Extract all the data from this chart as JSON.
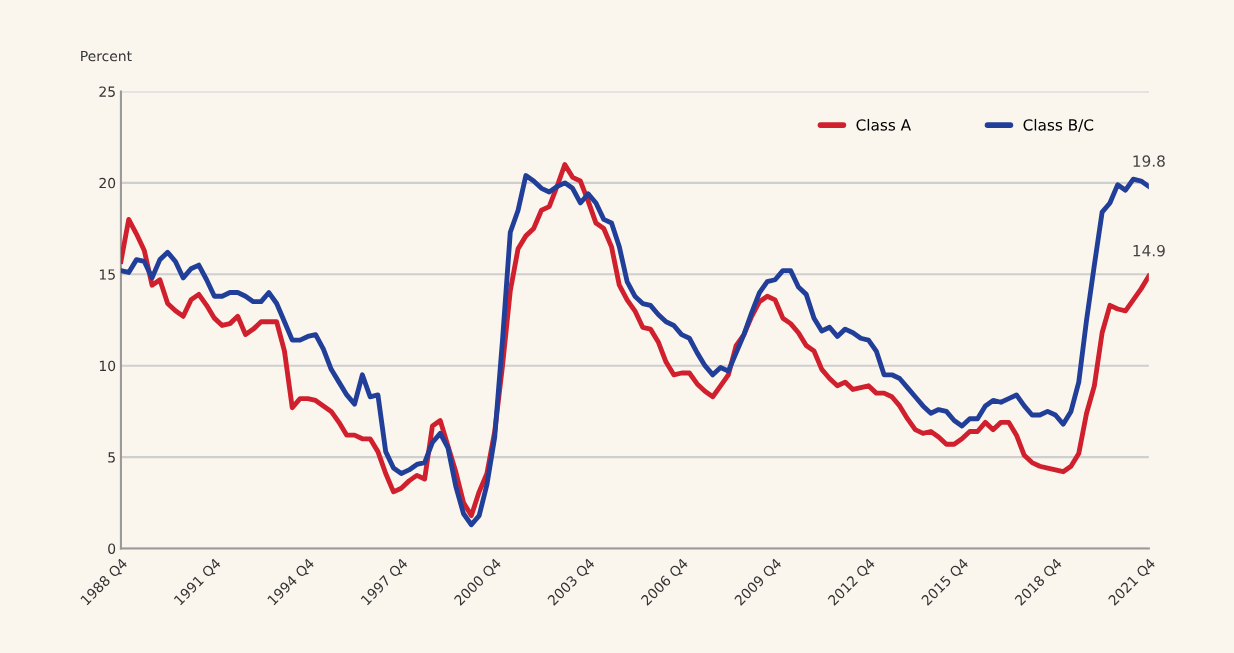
{
  "chart_data": {
    "type": "line",
    "ylabel": "Percent",
    "ylim": [
      0,
      25
    ],
    "yticks": [
      0,
      5,
      10,
      15,
      20,
      25
    ],
    "categories": [
      "1988 Q4",
      null,
      null,
      null,
      null,
      null,
      null,
      null,
      null,
      null,
      null,
      null,
      "1991 Q4",
      null,
      null,
      null,
      null,
      null,
      null,
      null,
      null,
      null,
      null,
      null,
      "1994 Q4",
      null,
      null,
      null,
      null,
      null,
      null,
      null,
      null,
      null,
      null,
      null,
      "1997 Q4",
      null,
      null,
      null,
      null,
      null,
      null,
      null,
      null,
      null,
      null,
      null,
      "2000 Q4",
      null,
      null,
      null,
      null,
      null,
      null,
      null,
      null,
      null,
      null,
      null,
      "2003 Q4",
      null,
      null,
      null,
      null,
      null,
      null,
      null,
      null,
      null,
      null,
      null,
      "2006 Q4",
      null,
      null,
      null,
      null,
      null,
      null,
      null,
      null,
      null,
      null,
      null,
      "2009 Q4",
      null,
      null,
      null,
      null,
      null,
      null,
      null,
      null,
      null,
      null,
      null,
      "2012 Q4",
      null,
      null,
      null,
      null,
      null,
      null,
      null,
      null,
      null,
      null,
      null,
      "2015 Q4",
      null,
      null,
      null,
      null,
      null,
      null,
      null,
      null,
      null,
      null,
      null,
      "2018 Q4",
      null,
      null,
      null,
      null,
      null,
      null,
      null,
      null,
      null,
      null,
      null,
      "2021 Q4"
    ],
    "grid": "y",
    "legend": "top right",
    "marker": "none",
    "line_style": "solid",
    "series": [
      {
        "name": "Class A",
        "color": "#d0202e",
        "values": [
          15.7,
          18.0,
          17.2,
          16.3,
          14.4,
          14.7,
          13.4,
          13.0,
          12.7,
          13.6,
          13.9,
          13.3,
          12.6,
          12.2,
          12.3,
          12.7,
          11.7,
          12.0,
          12.4,
          12.4,
          12.4,
          10.8,
          7.7,
          8.2,
          8.2,
          8.1,
          7.8,
          7.5,
          6.9,
          6.2,
          6.2,
          6.0,
          6.0,
          5.3,
          4.1,
          3.1,
          3.3,
          3.7,
          4.0,
          3.8,
          6.7,
          7.0,
          5.6,
          4.2,
          2.5,
          1.8,
          3.1,
          4.1,
          6.4,
          10.0,
          14.1,
          16.4,
          17.1,
          17.5,
          18.5,
          18.7,
          19.8,
          21.0,
          20.3,
          20.1,
          19.0,
          17.8,
          17.5,
          16.5,
          14.4,
          13.6,
          13.0,
          12.1,
          12.0,
          11.3,
          10.2,
          9.5,
          9.6,
          9.6,
          9.0,
          8.6,
          8.3,
          8.9,
          9.5,
          11.1,
          11.7,
          12.7,
          13.5,
          13.8,
          13.6,
          12.6,
          12.3,
          11.8,
          11.1,
          10.8,
          9.8,
          9.3,
          8.9,
          9.1,
          8.7,
          8.8,
          8.9,
          8.5,
          8.5,
          8.3,
          7.8,
          7.1,
          6.5,
          6.3,
          6.4,
          6.1,
          5.7,
          5.7,
          6.0,
          6.4,
          6.4,
          6.9,
          6.5,
          6.9,
          6.9,
          6.2,
          5.1,
          4.7,
          4.5,
          4.4,
          4.3,
          4.2,
          4.5,
          5.2,
          7.4,
          8.9,
          11.8,
          13.3,
          13.1,
          13.0,
          13.6,
          14.2,
          14.9
        ]
      },
      {
        "name": "Class B/C",
        "color": "#213f99",
        "values": [
          15.2,
          15.1,
          15.8,
          15.7,
          14.8,
          15.8,
          16.2,
          15.7,
          14.8,
          15.3,
          15.5,
          14.7,
          13.8,
          13.8,
          14.0,
          14.0,
          13.8,
          13.5,
          13.5,
          14.0,
          13.4,
          12.4,
          11.4,
          11.4,
          11.6,
          11.7,
          10.9,
          9.8,
          9.1,
          8.4,
          7.9,
          9.5,
          8.3,
          8.4,
          5.3,
          4.4,
          4.1,
          4.3,
          4.6,
          4.7,
          5.8,
          6.3,
          5.5,
          3.4,
          1.9,
          1.3,
          1.8,
          3.5,
          6.1,
          11.4,
          17.3,
          18.5,
          20.4,
          20.1,
          19.7,
          19.5,
          19.8,
          20.0,
          19.7,
          18.9,
          19.4,
          18.9,
          18.0,
          17.8,
          16.5,
          14.6,
          13.8,
          13.4,
          13.3,
          12.8,
          12.4,
          12.2,
          11.7,
          11.5,
          10.7,
          10.0,
          9.5,
          9.9,
          9.7,
          10.7,
          11.7,
          12.9,
          14.0,
          14.6,
          14.7,
          15.2,
          15.2,
          14.3,
          13.9,
          12.6,
          11.9,
          12.1,
          11.6,
          12.0,
          11.8,
          11.5,
          11.4,
          10.8,
          9.5,
          9.5,
          9.3,
          8.8,
          8.3,
          7.8,
          7.4,
          7.6,
          7.5,
          7.0,
          6.7,
          7.1,
          7.1,
          7.8,
          8.1,
          8.0,
          8.2,
          8.4,
          7.8,
          7.3,
          7.3,
          7.5,
          7.3,
          6.8,
          7.5,
          9.1,
          12.5,
          15.5,
          18.4,
          18.9,
          19.9,
          19.6,
          20.2,
          20.1,
          19.8
        ]
      }
    ],
    "annotations": [
      {
        "text": "19.8",
        "x": "2021 Q4",
        "y": 19.8
      },
      {
        "text": "14.9",
        "x": "2021 Q4",
        "y": 14.9
      }
    ]
  }
}
